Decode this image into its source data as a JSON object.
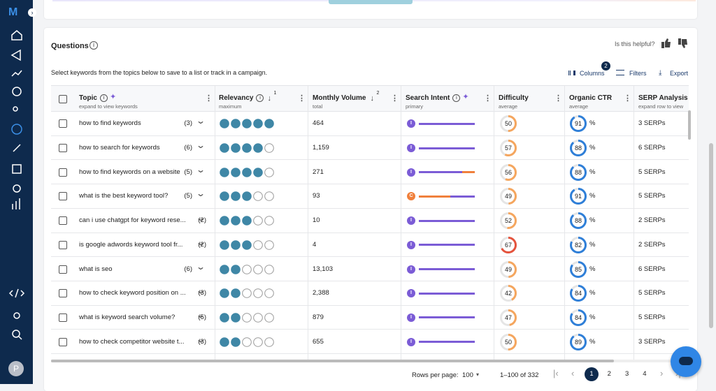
{
  "sidebar": {
    "logo": "M",
    "avatar": "P"
  },
  "header": {
    "title": "Questions",
    "helpful": "Is this helpful?",
    "instruction": "Select keywords from the topics below to save to a list or track in a campaign.",
    "columns_button": "Columns",
    "columns_badge": "2",
    "filters": "Filters",
    "export": "Export"
  },
  "table": {
    "ctr_unit": "%",
    "intent_colors": {
      "I": "#7b5cd6",
      "C": "#f0803c"
    },
    "columns": [
      {
        "title": "Topic",
        "sub": "expand to view keywords"
      },
      {
        "title": "Relevancy",
        "sub": "maximum",
        "sort": "1"
      },
      {
        "title": "Monthly Volume",
        "sub": "total",
        "sort": "2"
      },
      {
        "title": "Search Intent",
        "sub": "primary"
      },
      {
        "title": "Difficulty",
        "sub": "average"
      },
      {
        "title": "Organic CTR",
        "sub": "average"
      },
      {
        "title": "SERP Analysis",
        "sub": "expand row to view"
      }
    ],
    "rows": [
      {
        "topic": "how to find keywords",
        "count": "(3)",
        "relevancy": 5,
        "volume": "464",
        "intent": "I",
        "intent_bar": [
          100,
          0
        ],
        "difficulty": 50,
        "ctr": 91,
        "serps": "3 SERPs"
      },
      {
        "topic": "how to search for keywords",
        "count": "(6)",
        "relevancy": 4,
        "volume": "1,159",
        "intent": "I",
        "intent_bar": [
          100,
          0
        ],
        "difficulty": 57,
        "ctr": 88,
        "serps": "6 SERPs"
      },
      {
        "topic": "how to find keywords on a website",
        "count": "(5)",
        "relevancy": 4,
        "volume": "271",
        "intent": "I",
        "intent_bar": [
          78,
          22
        ],
        "difficulty": 56,
        "ctr": 88,
        "serps": "5 SERPs"
      },
      {
        "topic": "what is the best keyword tool?",
        "count": "(5)",
        "relevancy": 3,
        "volume": "93",
        "intent": "C",
        "intent_bar": [
          56,
          44
        ],
        "difficulty": 49,
        "ctr": 91,
        "serps": "5 SERPs"
      },
      {
        "topic": "can i use chatgpt for keyword rese...",
        "count": "(2)",
        "relevancy": 3,
        "volume": "10",
        "intent": "I",
        "intent_bar": [
          100,
          0
        ],
        "difficulty": 52,
        "ctr": 88,
        "serps": "2 SERPs"
      },
      {
        "topic": "is google adwords keyword tool fr...",
        "count": "(2)",
        "relevancy": 3,
        "volume": "4",
        "intent": "I",
        "intent_bar": [
          100,
          0
        ],
        "difficulty": 67,
        "ctr": 82,
        "serps": "2 SERPs"
      },
      {
        "topic": "what is seo",
        "count": "(6)",
        "relevancy": 2,
        "volume": "13,103",
        "intent": "I",
        "intent_bar": [
          100,
          0
        ],
        "difficulty": 49,
        "ctr": 85,
        "serps": "6 SERPs"
      },
      {
        "topic": "how to check keyword position on ...",
        "count": "(3)",
        "relevancy": 2,
        "volume": "2,388",
        "intent": "I",
        "intent_bar": [
          100,
          0
        ],
        "difficulty": 42,
        "ctr": 84,
        "serps": "5 SERPs"
      },
      {
        "topic": "what is keyword search volume?",
        "count": "(5)",
        "relevancy": 2,
        "volume": "879",
        "intent": "I",
        "intent_bar": [
          100,
          0
        ],
        "difficulty": 47,
        "ctr": 84,
        "serps": "5 SERPs"
      },
      {
        "topic": "how to check competitor website t...",
        "count": "(3)",
        "relevancy": 2,
        "volume": "655",
        "intent": "I",
        "intent_bar": [
          100,
          0
        ],
        "difficulty": 50,
        "ctr": 89,
        "serps": "3 SERPs"
      }
    ]
  },
  "pagination": {
    "rows_label": "Rows per page:",
    "rows_value": "100",
    "range": "1–100 of 332",
    "pages": [
      "1",
      "2",
      "3",
      "4"
    ],
    "current": 0
  }
}
